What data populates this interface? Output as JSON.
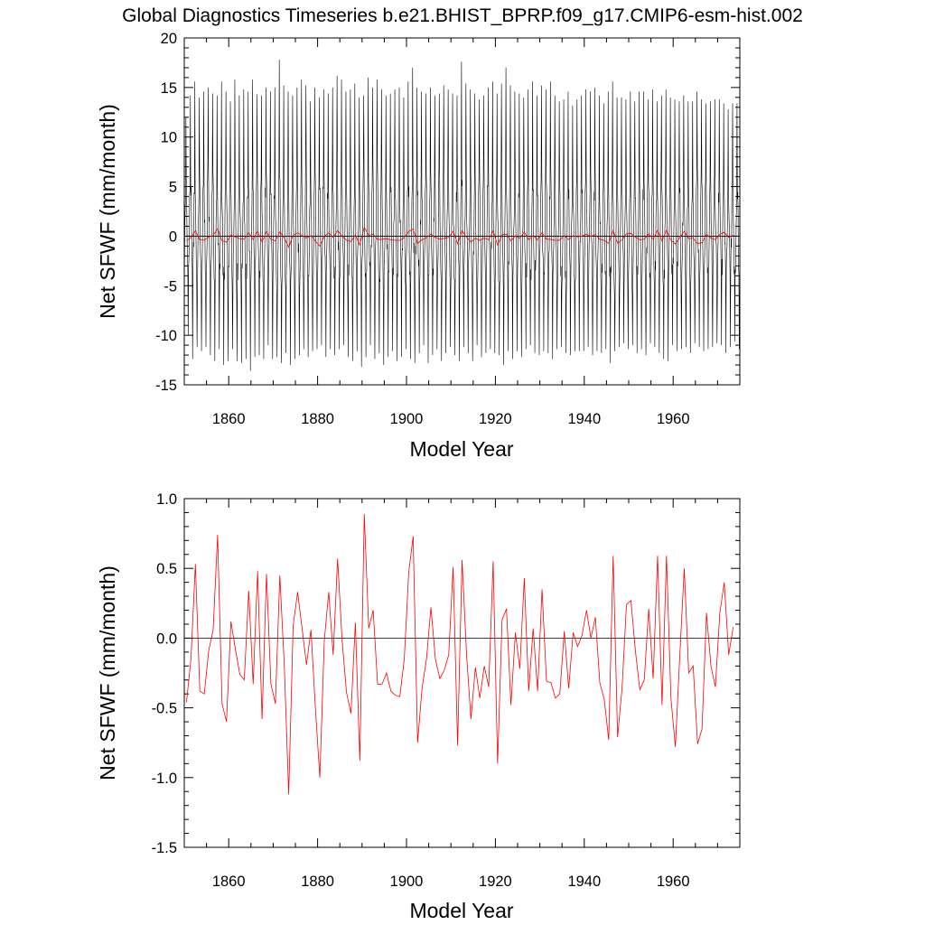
{
  "figure": {
    "title": "Global Diagnostics Timeseries b.e21.BHIST_BPRP.f09_g17.CMIP6-esm-hist.002"
  },
  "chart_data": [
    {
      "type": "line",
      "xlabel": "Model Year",
      "ylabel": "Net SFWF (mm/month)",
      "xlim": [
        1850,
        1975
      ],
      "ylim": [
        -15,
        20
      ],
      "xticks": [
        1860,
        1880,
        1900,
        1920,
        1940,
        1960
      ],
      "xtick_labels": [
        "1860",
        "1880",
        "1900",
        "1920",
        "1940",
        "1960"
      ],
      "yticks": [
        -15,
        -10,
        -5,
        0,
        5,
        10,
        15,
        20
      ],
      "ytick_labels": [
        "-15",
        "-10",
        "-5",
        "0",
        "5",
        "10",
        "15",
        "20"
      ],
      "zero_line": true,
      "grid": false,
      "series": [
        {
          "style": "monthly",
          "color": "#000000",
          "x_start": 1850.5,
          "annual_max": [
            12.0,
            14.2,
            15.6,
            14.0,
            14.6,
            15.0,
            14.4,
            14.2,
            15.6,
            14.6,
            13.6,
            15.8,
            14.2,
            14.8,
            14.6,
            15.8,
            14.3,
            14.2,
            15.0,
            14.6,
            15.0,
            17.8,
            15.2,
            14.6,
            14.2,
            15.0,
            15.8,
            15.2,
            13.6,
            15.0,
            14.0,
            14.8,
            14.4,
            15.0,
            16.2,
            15.8,
            14.6,
            14.8,
            15.4,
            14.0,
            14.2,
            16.0,
            15.0,
            15.8,
            14.8,
            14.2,
            14.4,
            14.8,
            15.0,
            14.0,
            15.6,
            17.0,
            15.0,
            14.6,
            14.4,
            15.0,
            14.2,
            14.4,
            15.2,
            14.8,
            14.4,
            14.2,
            17.6,
            15.4,
            14.8,
            14.4,
            13.8,
            14.2,
            15.0,
            15.6,
            14.4,
            15.4,
            17.0,
            15.2,
            14.6,
            14.4,
            14.0,
            14.8,
            15.6,
            14.2,
            15.2,
            14.8,
            15.6,
            14.2,
            13.6,
            13.8,
            14.6,
            13.2,
            13.8,
            14.2,
            14.8,
            14.6,
            15.0,
            14.2,
            13.4,
            14.6,
            15.6,
            14.0,
            14.0,
            13.8,
            14.6,
            13.6,
            14.6,
            14.6,
            13.8,
            14.8,
            13.6,
            14.2,
            14.8,
            14.0,
            13.8,
            13.6,
            14.2,
            13.6,
            13.6,
            14.6,
            13.8,
            13.4,
            13.6,
            13.8,
            13.8,
            13.4,
            12.8,
            13.4,
            13.4
          ],
          "annual_min": [
            -10.0,
            -12.4,
            -11.2,
            -11.6,
            -11.2,
            -12.0,
            -12.6,
            -11.4,
            -13.0,
            -12.6,
            -11.4,
            -12.6,
            -12.8,
            -12.4,
            -13.6,
            -12.2,
            -12.0,
            -12.4,
            -11.0,
            -12.4,
            -12.2,
            -12.8,
            -11.8,
            -13.0,
            -12.4,
            -12.0,
            -11.4,
            -12.2,
            -11.6,
            -11.4,
            -11.0,
            -12.2,
            -11.4,
            -12.0,
            -11.4,
            -11.0,
            -12.2,
            -12.6,
            -11.6,
            -13.2,
            -12.2,
            -11.0,
            -12.4,
            -11.8,
            -13.0,
            -12.2,
            -11.6,
            -12.6,
            -12.2,
            -11.4,
            -12.4,
            -12.8,
            -11.8,
            -11.0,
            -12.8,
            -12.0,
            -11.4,
            -12.6,
            -11.8,
            -11.2,
            -12.0,
            -12.6,
            -11.2,
            -11.8,
            -12.6,
            -11.0,
            -12.2,
            -11.8,
            -11.4,
            -11.8,
            -12.0,
            -13.0,
            -11.6,
            -12.4,
            -11.6,
            -12.2,
            -11.4,
            -11.0,
            -11.8,
            -12.0,
            -11.6,
            -11.8,
            -12.4,
            -11.4,
            -11.2,
            -11.8,
            -12.0,
            -11.6,
            -11.6,
            -11.6,
            -11.2,
            -12.0,
            -11.6,
            -11.8,
            -11.4,
            -12.8,
            -11.6,
            -11.2,
            -10.8,
            -11.4,
            -11.0,
            -11.8,
            -11.4,
            -12.0,
            -10.8,
            -11.2,
            -11.8,
            -12.4,
            -12.6,
            -11.0,
            -11.6,
            -11.4,
            -11.2,
            -11.8,
            -10.8,
            -11.2,
            -11.6,
            -11.4,
            -11.2,
            -10.8,
            -11.0,
            -11.8,
            -11.2,
            -10.6,
            -11.4
          ]
        },
        {
          "style": "annual",
          "color": "#ff0000",
          "x_start": 1850.5,
          "y": [
            -0.46,
            -0.15,
            0.53,
            -0.38,
            -0.4,
            -0.09,
            0.06,
            0.74,
            -0.47,
            -0.6,
            0.12,
            -0.08,
            -0.26,
            -0.3,
            0.34,
            -0.33,
            0.48,
            -0.58,
            0.46,
            -0.33,
            -0.47,
            0.45,
            -0.19,
            -1.12,
            0.09,
            0.33,
            0.07,
            -0.19,
            0.06,
            -0.5,
            -1.0,
            -0.02,
            0.33,
            -0.12,
            0.57,
            -0.01,
            -0.39,
            -0.54,
            0.11,
            -0.88,
            0.89,
            0.07,
            0.2,
            -0.33,
            -0.33,
            -0.25,
            -0.38,
            -0.41,
            -0.42,
            -0.15,
            0.47,
            0.73,
            -0.75,
            -0.36,
            -0.15,
            0.22,
            -0.15,
            -0.29,
            -0.23,
            -0.12,
            0.51,
            -0.77,
            0.56,
            -0.11,
            -0.58,
            -0.21,
            -0.43,
            -0.2,
            -0.35,
            0.55,
            -0.9,
            0.13,
            0.21,
            -0.48,
            0.04,
            -0.22,
            0.43,
            -0.38,
            0.07,
            -0.38,
            0.35,
            -0.31,
            -0.32,
            -0.43,
            -0.4,
            0.05,
            -0.36,
            0.04,
            -0.06,
            0.02,
            0.2,
            0.0,
            0.15,
            -0.32,
            -0.44,
            -0.73,
            0.59,
            -0.71,
            -0.36,
            0.24,
            0.27,
            -0.09,
            -0.37,
            -0.3,
            0.21,
            -0.29,
            0.59,
            -0.48,
            0.59,
            -0.43,
            -0.78,
            -0.12,
            0.5,
            -0.25,
            -0.2,
            -0.76,
            -0.65,
            0.18,
            -0.2,
            -0.35,
            0.18,
            0.4,
            -0.12,
            0.08
          ]
        }
      ]
    },
    {
      "type": "line",
      "xlabel": "Model Year",
      "ylabel": "Net SFWF (mm/month)",
      "xlim": [
        1850,
        1975
      ],
      "ylim": [
        -1.5,
        1.0
      ],
      "xticks": [
        1860,
        1880,
        1900,
        1920,
        1940,
        1960
      ],
      "xtick_labels": [
        "1860",
        "1880",
        "1900",
        "1920",
        "1940",
        "1960"
      ],
      "yticks": [
        -1.5,
        -1.0,
        -0.5,
        0.0,
        0.5,
        1.0
      ],
      "ytick_labels": [
        "-1.5",
        "-1.0",
        "-0.5",
        "0.0",
        "0.5",
        "1.0"
      ],
      "zero_line": true,
      "grid": false,
      "series": [
        {
          "style": "annual",
          "color": "#ff0000",
          "x_start": 1850.5,
          "y": [
            -0.46,
            -0.15,
            0.53,
            -0.38,
            -0.4,
            -0.09,
            0.06,
            0.74,
            -0.47,
            -0.6,
            0.12,
            -0.08,
            -0.26,
            -0.3,
            0.34,
            -0.33,
            0.48,
            -0.58,
            0.46,
            -0.33,
            -0.47,
            0.45,
            -0.19,
            -1.12,
            0.09,
            0.33,
            0.07,
            -0.19,
            0.06,
            -0.5,
            -1.0,
            -0.02,
            0.33,
            -0.12,
            0.57,
            -0.01,
            -0.39,
            -0.54,
            0.11,
            -0.88,
            0.89,
            0.07,
            0.2,
            -0.33,
            -0.33,
            -0.25,
            -0.38,
            -0.41,
            -0.42,
            -0.15,
            0.47,
            0.73,
            -0.75,
            -0.36,
            -0.15,
            0.22,
            -0.15,
            -0.29,
            -0.23,
            -0.12,
            0.51,
            -0.77,
            0.56,
            -0.11,
            -0.58,
            -0.21,
            -0.43,
            -0.2,
            -0.35,
            0.55,
            -0.9,
            0.13,
            0.21,
            -0.48,
            0.04,
            -0.22,
            0.43,
            -0.38,
            0.07,
            -0.38,
            0.35,
            -0.31,
            -0.32,
            -0.43,
            -0.4,
            0.05,
            -0.36,
            0.04,
            -0.06,
            0.02,
            0.2,
            0.0,
            0.15,
            -0.32,
            -0.44,
            -0.73,
            0.59,
            -0.71,
            -0.36,
            0.24,
            0.27,
            -0.09,
            -0.37,
            -0.3,
            0.21,
            -0.29,
            0.59,
            -0.48,
            0.59,
            -0.43,
            -0.78,
            -0.12,
            0.5,
            -0.25,
            -0.2,
            -0.76,
            -0.65,
            0.18,
            -0.2,
            -0.35,
            0.18,
            0.4,
            -0.12,
            0.08
          ]
        }
      ]
    }
  ]
}
